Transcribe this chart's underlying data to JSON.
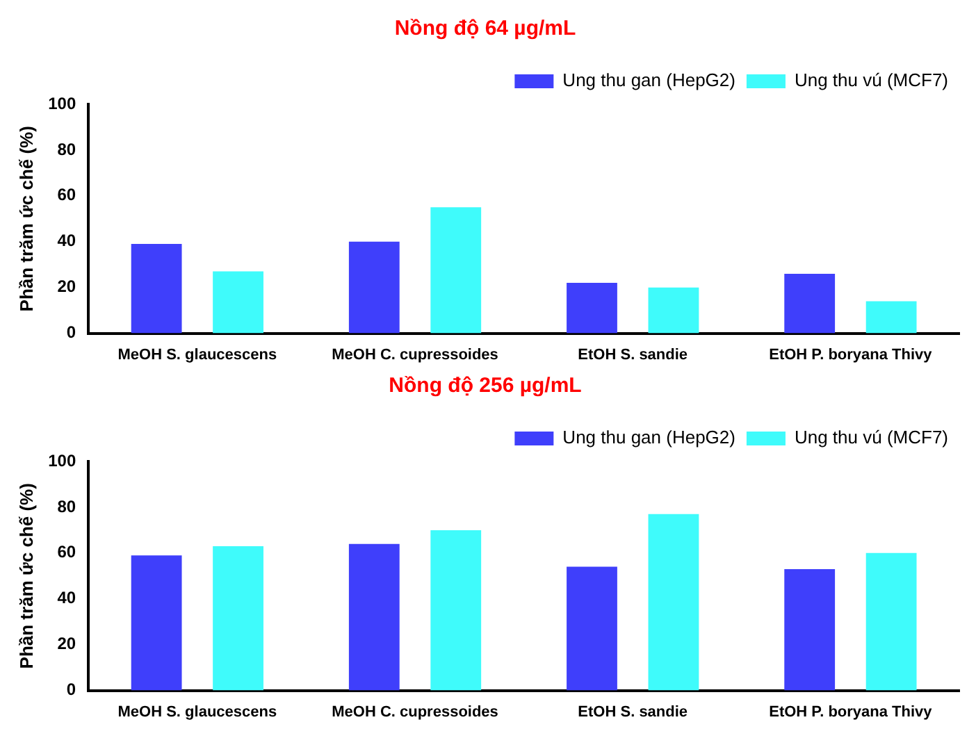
{
  "chart_data": [
    {
      "type": "bar",
      "title": "Nồng độ 64 µg/mL",
      "ylabel": "Phần trăm ức chế (%)",
      "categories": [
        "MeOH S. glaucescens",
        "MeOH C. cupressoides",
        "EtOH S. sandie",
        "EtOH P. boryana Thivy"
      ],
      "series": [
        {
          "name": "Ung thu gan (HepG2)",
          "color": "#3f3ffb",
          "values": [
            39,
            40,
            22,
            26
          ]
        },
        {
          "name": "Ung thu vú (MCF7)",
          "color": "#3ffbfb",
          "values": [
            27,
            55,
            20,
            14
          ]
        }
      ],
      "ylim": [
        0,
        100
      ],
      "yticks": [
        0,
        20,
        40,
        60,
        80,
        100
      ],
      "grid": false,
      "legend": "top right"
    },
    {
      "type": "bar",
      "title": "Nồng độ 256 µg/mL",
      "ylabel": "Phần trăm ức chế (%)",
      "categories": [
        "MeOH S. glaucescens",
        "MeOH C. cupressoides",
        "EtOH S. sandie",
        "EtOH P. boryana Thivy"
      ],
      "series": [
        {
          "name": "Ung thu gan (HepG2)",
          "color": "#3f3ffb",
          "values": [
            59,
            64,
            54,
            53
          ]
        },
        {
          "name": "Ung thu vú (MCF7)",
          "color": "#3ffbfb",
          "values": [
            63,
            70,
            77,
            60
          ]
        }
      ],
      "ylim": [
        0,
        100
      ],
      "yticks": [
        0,
        20,
        40,
        60,
        80,
        100
      ],
      "grid": false,
      "legend": "top right"
    }
  ]
}
